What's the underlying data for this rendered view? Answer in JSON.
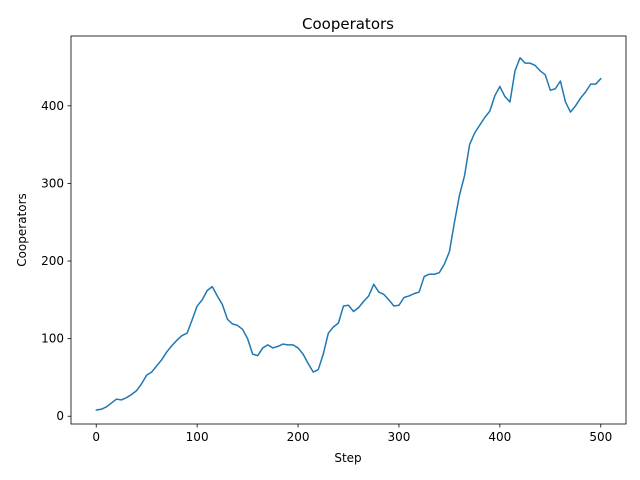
{
  "chart_data": {
    "type": "line",
    "title": "Cooperators",
    "xlabel": "Step",
    "ylabel": "Cooperators",
    "xlim": [
      -25,
      525
    ],
    "ylim": [
      -10,
      490
    ],
    "x_ticks": [
      0,
      100,
      200,
      300,
      400,
      500
    ],
    "y_ticks": [
      0,
      100,
      200,
      300,
      400
    ],
    "grid": false,
    "line_color": "#1f77b4",
    "series": [
      {
        "x": [
          0,
          5,
          10,
          15,
          20,
          25,
          30,
          35,
          40,
          45,
          50,
          55,
          60,
          65,
          70,
          75,
          80,
          85,
          90,
          95,
          100,
          105,
          110,
          115,
          120,
          125,
          130,
          135,
          140,
          145,
          150,
          155,
          160,
          165,
          170,
          175,
          180,
          185,
          190,
          195,
          200,
          205,
          210,
          215,
          220,
          225,
          230,
          235,
          240,
          245,
          250,
          255,
          260,
          265,
          270,
          275,
          280,
          285,
          290,
          295,
          300,
          305,
          310,
          315,
          320,
          325,
          330,
          335,
          340,
          345,
          350,
          355,
          360,
          365,
          370,
          375,
          380,
          385,
          390,
          395,
          400,
          405,
          410,
          415,
          420,
          425,
          430,
          435,
          440,
          445,
          450,
          455,
          460,
          465,
          470,
          475,
          480,
          485,
          490,
          495,
          500
        ],
        "values": [
          8,
          9,
          12,
          17,
          22,
          21,
          24,
          28,
          33,
          42,
          53,
          57,
          65,
          73,
          83,
          91,
          98,
          104,
          107,
          124,
          142,
          150,
          162,
          167,
          155,
          144,
          125,
          119,
          117,
          112,
          100,
          80,
          78,
          88,
          92,
          88,
          90,
          93,
          92,
          92,
          88,
          80,
          68,
          57,
          60,
          80,
          107,
          115,
          120,
          142,
          143,
          135,
          140,
          148,
          155,
          170,
          160,
          157,
          150,
          142,
          143,
          153,
          155,
          158,
          160,
          180,
          183,
          183,
          185,
          196,
          212,
          250,
          285,
          310,
          350,
          365,
          375,
          385,
          393,
          413,
          425,
          412,
          405,
          445,
          462,
          455,
          455,
          452,
          445,
          440,
          420,
          422,
          432,
          405,
          392,
          400,
          410,
          418,
          428,
          428,
          435
        ]
      }
    ]
  }
}
